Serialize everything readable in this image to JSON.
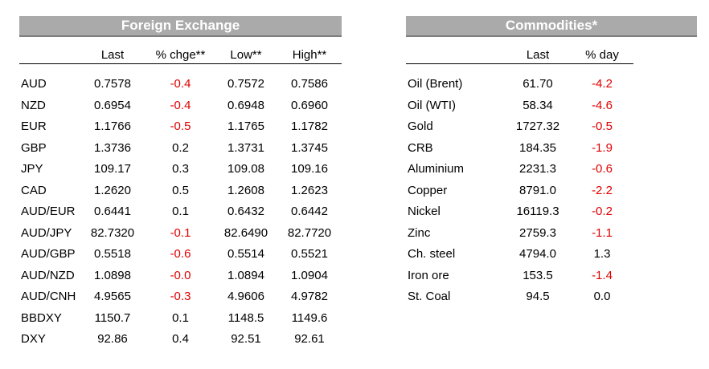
{
  "fx": {
    "title": "Foreign Exchange",
    "headers": [
      "Last",
      "% chge**",
      "Low**",
      "High**"
    ],
    "rows": [
      {
        "name": "AUD",
        "last": "0.7578",
        "chg": "-0.4",
        "low": "0.7572",
        "high": "0.7586",
        "neg": true
      },
      {
        "name": "NZD",
        "last": "0.6954",
        "chg": "-0.4",
        "low": "0.6948",
        "high": "0.6960",
        "neg": true
      },
      {
        "name": "EUR",
        "last": "1.1766",
        "chg": "-0.5",
        "low": "1.1765",
        "high": "1.1782",
        "neg": true
      },
      {
        "name": "GBP",
        "last": "1.3736",
        "chg": "0.2",
        "low": "1.3731",
        "high": "1.3745",
        "neg": false
      },
      {
        "name": "JPY",
        "last": "109.17",
        "chg": "0.3",
        "low": "109.08",
        "high": "109.16",
        "neg": false
      },
      {
        "name": "CAD",
        "last": "1.2620",
        "chg": "0.5",
        "low": "1.2608",
        "high": "1.2623",
        "neg": false
      },
      {
        "name": "AUD/EUR",
        "last": "0.6441",
        "chg": "0.1",
        "low": "0.6432",
        "high": "0.6442",
        "neg": false
      },
      {
        "name": "AUD/JPY",
        "last": "82.7320",
        "chg": "-0.1",
        "low": "82.6490",
        "high": "82.7720",
        "neg": true
      },
      {
        "name": "AUD/GBP",
        "last": "0.5518",
        "chg": "-0.6",
        "low": "0.5514",
        "high": "0.5521",
        "neg": true
      },
      {
        "name": "AUD/NZD",
        "last": "1.0898",
        "chg": "-0.0",
        "low": "1.0894",
        "high": "1.0904",
        "neg": true
      },
      {
        "name": "AUD/CNH",
        "last": "4.9565",
        "chg": "-0.3",
        "low": "4.9606",
        "high": "4.9782",
        "neg": true
      },
      {
        "name": "BBDXY",
        "last": "1150.7",
        "chg": "0.1",
        "low": "1148.5",
        "high": "1149.6",
        "neg": false
      },
      {
        "name": "DXY",
        "last": "92.86",
        "chg": "0.4",
        "low": "92.51",
        "high": "92.61",
        "neg": false
      }
    ]
  },
  "commodities": {
    "title": "Commodities*",
    "headers": [
      "Last",
      "% day"
    ],
    "rows": [
      {
        "name": "Oil (Brent)",
        "last": "61.70",
        "day": "-4.2",
        "neg": true
      },
      {
        "name": "Oil (WTI)",
        "last": "58.34",
        "day": "-4.6",
        "neg": true
      },
      {
        "name": "Gold",
        "last": "1727.32",
        "day": "-0.5",
        "neg": true
      },
      {
        "name": "CRB",
        "last": "184.35",
        "day": "-1.9",
        "neg": true
      },
      {
        "name": "Aluminium",
        "last": "2231.3",
        "day": "-0.6",
        "neg": true
      },
      {
        "name": "Copper",
        "last": "8791.0",
        "day": "-2.2",
        "neg": true
      },
      {
        "name": "Nickel",
        "last": "16119.3",
        "day": "-0.2",
        "neg": true
      },
      {
        "name": "Zinc",
        "last": "2759.3",
        "day": "-1.1",
        "neg": true
      },
      {
        "name": "Ch. steel",
        "last": "4794.0",
        "day": "1.3",
        "neg": false
      },
      {
        "name": "Iron ore",
        "last": "153.5",
        "day": "-1.4",
        "neg": true
      },
      {
        "name": "St. Coal",
        "last": "94.5",
        "day": "0.0",
        "neg": false
      }
    ]
  },
  "colors": {
    "banner_bg": "#aaaaaa",
    "banner_text": "#ffffff",
    "negative": "#e00000"
  }
}
